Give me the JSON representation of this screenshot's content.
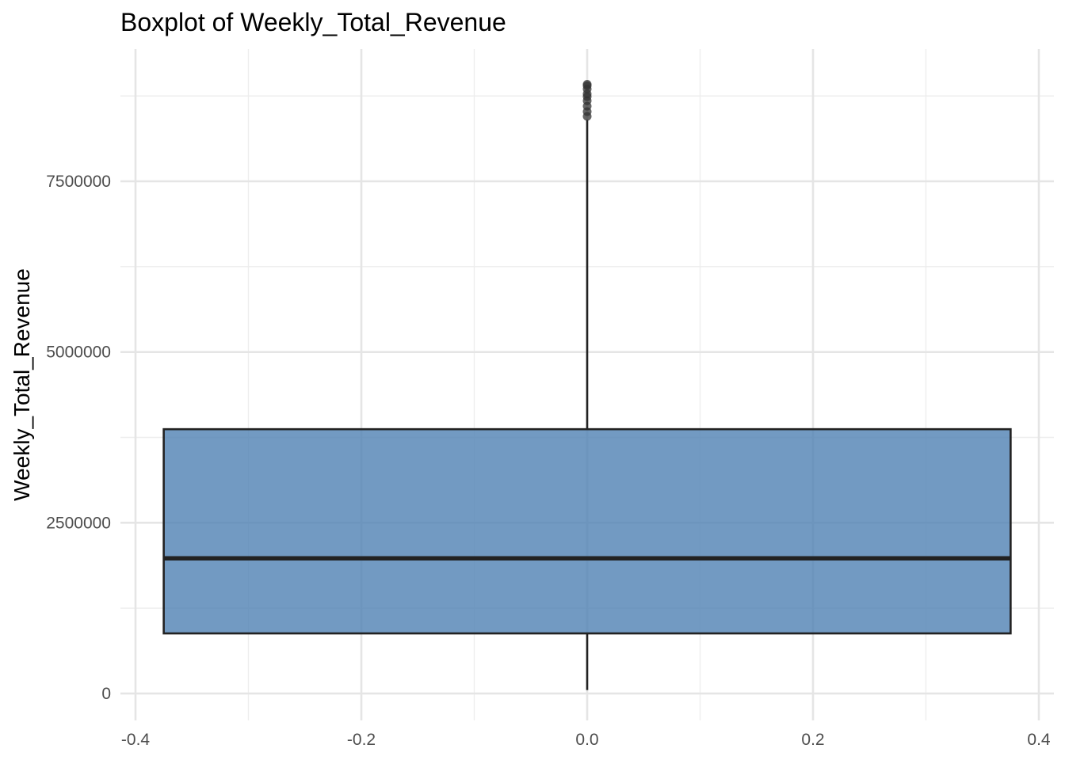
{
  "chart_data": {
    "type": "boxplot",
    "title": "Boxplot of Weekly_Total_Revenue",
    "xlabel": "",
    "ylabel": "Weekly_Total_Revenue",
    "xlim": [
      -0.4,
      0.4
    ],
    "ylim": [
      0,
      9000000
    ],
    "x_ticks": [
      "-0.4",
      "-0.2",
      "0.0",
      "0.2",
      "0.4"
    ],
    "x_tick_values": [
      -0.4,
      -0.2,
      0.0,
      0.2,
      0.4
    ],
    "y_ticks": [
      "0",
      "2500000",
      "5000000",
      "7500000"
    ],
    "y_tick_values": [
      0,
      2500000,
      5000000,
      7500000
    ],
    "grid": true,
    "box": {
      "x_center": 0.0,
      "x_from": -0.375,
      "x_to": 0.375,
      "whisker_low": 50000,
      "q1": 880000,
      "median": 1980000,
      "q3": 3870000,
      "whisker_high": 8400000
    },
    "outliers": [
      8450000,
      8520000,
      8600000,
      8680000,
      8740000,
      8780000,
      8850000,
      8900000,
      8920000
    ],
    "colors": {
      "box_fill": "#4f81b3",
      "box_edge": "#222222",
      "outlier": "#333333"
    }
  }
}
